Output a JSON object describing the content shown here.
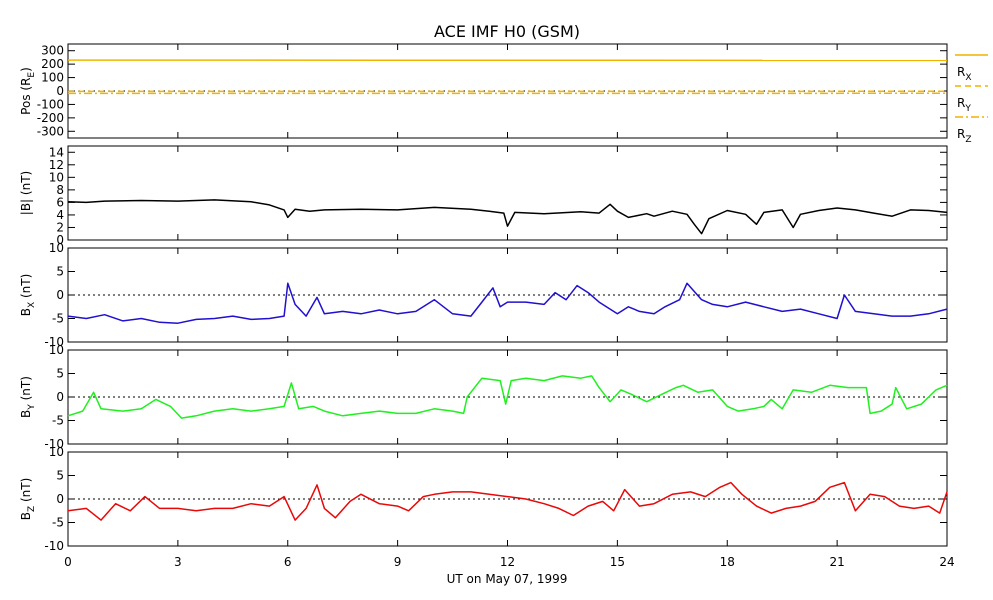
{
  "chart_data": {
    "title": "ACE IMF H0 (GSM)",
    "xlabel": "UT on May 07, 1999",
    "xticks": [
      0,
      3,
      6,
      9,
      12,
      15,
      18,
      21,
      24
    ],
    "xlim": [
      0,
      24
    ],
    "panels": [
      {
        "id": "pos",
        "type": "line",
        "ylabel": "Pos (R_E)",
        "ylim": [
          -350,
          350
        ],
        "yticks": [
          -300,
          -200,
          -100,
          0,
          100,
          200,
          300
        ],
        "zero_line": true,
        "series": [
          {
            "name": "RX",
            "color": "#f0b400",
            "dash": "solid",
            "x": [
              0,
              24
            ],
            "y": [
              230,
              228
            ]
          },
          {
            "name": "RY",
            "color": "#f0b400",
            "dash": "dashed",
            "x": [
              0,
              24
            ],
            "y": [
              -3,
              -2
            ]
          },
          {
            "name": "RZ",
            "color": "#f0b400",
            "dash": "dashdot",
            "x": [
              0,
              24
            ],
            "y": [
              -18,
              -17
            ]
          }
        ]
      },
      {
        "id": "btot",
        "type": "line",
        "ylabel": "|B| (nT)",
        "ylim": [
          0,
          15
        ],
        "yticks": [
          0,
          2,
          4,
          6,
          8,
          10,
          12,
          14
        ],
        "zero_line": false,
        "series": [
          {
            "name": "|B|",
            "color": "#000000",
            "x": [
              0,
              0.5,
              1,
              2,
              3,
              4,
              5,
              5.5,
              5.9,
              6.0,
              6.2,
              6.6,
              7,
              8,
              9,
              10,
              11,
              11.5,
              11.9,
              12,
              12.2,
              13,
              14,
              14.5,
              14.8,
              15,
              15.3,
              15.8,
              16,
              16.5,
              16.9,
              17.1,
              17.3,
              17.5,
              18,
              18.5,
              18.8,
              19,
              19.5,
              19.8,
              20,
              20.5,
              21,
              21.5,
              22,
              22.5,
              23,
              23.5,
              24
            ],
            "y": [
              6.1,
              6.0,
              6.2,
              6.3,
              6.2,
              6.4,
              6.1,
              5.6,
              4.8,
              3.6,
              4.9,
              4.6,
              4.8,
              4.9,
              4.8,
              5.2,
              4.9,
              4.6,
              4.3,
              2.2,
              4.4,
              4.2,
              4.5,
              4.3,
              5.7,
              4.6,
              3.6,
              4.2,
              3.8,
              4.6,
              4.1,
              2.5,
              1.0,
              3.4,
              4.7,
              4.1,
              2.5,
              4.4,
              4.8,
              2.0,
              4.1,
              4.7,
              5.1,
              4.8,
              4.3,
              3.8,
              4.8,
              4.7,
              4.4
            ]
          }
        ]
      },
      {
        "id": "bx",
        "type": "line",
        "ylabel": "BX (nT)",
        "ylim": [
          -10,
          10
        ],
        "yticks": [
          -10,
          -5,
          0,
          5,
          10
        ],
        "zero_line": true,
        "series": [
          {
            "name": "BX",
            "color": "#2010d0",
            "x": [
              0,
              0.5,
              1,
              1.5,
              2,
              2.5,
              3,
              3.5,
              4,
              4.5,
              5,
              5.5,
              5.9,
              6.0,
              6.2,
              6.5,
              6.8,
              7,
              7.5,
              8,
              8.5,
              9,
              9.5,
              10,
              10.5,
              11,
              11.3,
              11.6,
              11.8,
              12,
              12.5,
              13,
              13.3,
              13.6,
              13.9,
              14.2,
              14.5,
              14.8,
              15,
              15.3,
              15.6,
              16,
              16.3,
              16.7,
              16.9,
              17.3,
              17.6,
              18,
              18.5,
              19,
              19.5,
              20,
              20.5,
              21,
              21.2,
              21.5,
              22,
              22.5,
              23,
              23.5,
              24
            ],
            "y": [
              -4.5,
              -5.0,
              -4.2,
              -5.5,
              -5.0,
              -5.8,
              -6.0,
              -5.2,
              -5.0,
              -4.5,
              -5.2,
              -5.0,
              -4.5,
              2.5,
              -2.0,
              -4.5,
              -0.5,
              -4.0,
              -3.5,
              -4.0,
              -3.2,
              -4.0,
              -3.5,
              -1.0,
              -4.0,
              -4.5,
              -1.5,
              1.5,
              -2.5,
              -1.5,
              -1.5,
              -2.0,
              0.5,
              -1.0,
              2.0,
              0.5,
              -1.5,
              -3.0,
              -4.0,
              -2.5,
              -3.5,
              -4.0,
              -2.5,
              -1.0,
              2.5,
              -1.0,
              -2.0,
              -2.5,
              -1.5,
              -2.5,
              -3.5,
              -3.0,
              -4.0,
              -5.0,
              0.0,
              -3.5,
              -4.0,
              -4.5,
              -4.5,
              -4.0,
              -3.0
            ]
          }
        ]
      },
      {
        "id": "by",
        "type": "line",
        "ylabel": "BY (nT)",
        "ylim": [
          -10,
          10
        ],
        "yticks": [
          -10,
          -5,
          0,
          5,
          10
        ],
        "zero_line": true,
        "series": [
          {
            "name": "BY",
            "color": "#20f020",
            "x": [
              0,
              0.4,
              0.7,
              0.9,
              1.5,
              2,
              2.4,
              2.8,
              3.1,
              3.5,
              4,
              4.5,
              5,
              5.5,
              5.9,
              6.1,
              6.3,
              6.7,
              7,
              7.5,
              8,
              8.5,
              9,
              9.5,
              10,
              10.5,
              10.8,
              10.9,
              11.3,
              11.8,
              11.95,
              12.1,
              12.5,
              13,
              13.5,
              14,
              14.3,
              14.5,
              14.8,
              15.1,
              15.4,
              15.8,
              16.2,
              16.6,
              16.8,
              17.2,
              17.6,
              18,
              18.3,
              18.7,
              19,
              19.2,
              19.5,
              19.8,
              20.3,
              20.8,
              21.3,
              21.8,
              21.9,
              22.2,
              22.5,
              22.6,
              22.9,
              23.3,
              23.7,
              24
            ],
            "y": [
              -4.0,
              -3.0,
              1.0,
              -2.5,
              -3.0,
              -2.5,
              -0.5,
              -2.0,
              -4.5,
              -4.0,
              -3.0,
              -2.5,
              -3.0,
              -2.5,
              -2.0,
              3.0,
              -2.5,
              -2.0,
              -3.0,
              -4.0,
              -3.5,
              -3.0,
              -3.5,
              -3.5,
              -2.5,
              -3.0,
              -3.5,
              0.0,
              4.0,
              3.5,
              -1.5,
              3.5,
              4.0,
              3.5,
              4.5,
              4.0,
              4.5,
              2.0,
              -1.0,
              1.5,
              0.5,
              -1.0,
              0.5,
              2.0,
              2.5,
              1.0,
              1.5,
              -2.0,
              -3.0,
              -2.5,
              -2.0,
              -0.5,
              -2.5,
              1.5,
              1.0,
              2.5,
              2.0,
              2.0,
              -3.5,
              -3.0,
              -1.5,
              2.0,
              -2.5,
              -1.5,
              1.5,
              2.5
            ]
          }
        ]
      },
      {
        "id": "bz",
        "type": "line",
        "ylabel": "BZ (nT)",
        "ylim": [
          -10,
          10
        ],
        "yticks": [
          -10,
          -5,
          0,
          5,
          10
        ],
        "zero_line": true,
        "series": [
          {
            "name": "BZ",
            "color": "#e80808",
            "x": [
              0,
              0.5,
              0.9,
              1.3,
              1.7,
              2.1,
              2.5,
              3,
              3.5,
              4,
              4.5,
              5,
              5.5,
              5.9,
              6.2,
              6.5,
              6.8,
              7,
              7.3,
              7.7,
              8,
              8.5,
              9,
              9.3,
              9.7,
              10,
              10.5,
              11,
              11.5,
              12,
              12.5,
              13,
              13.4,
              13.8,
              14.2,
              14.6,
              14.9,
              15.2,
              15.6,
              16,
              16.5,
              17,
              17.4,
              17.8,
              18.1,
              18.4,
              18.8,
              19.2,
              19.6,
              20,
              20.4,
              20.8,
              21.2,
              21.5,
              21.9,
              22.3,
              22.7,
              23.1,
              23.5,
              23.8,
              24
            ],
            "y": [
              -2.5,
              -2.0,
              -4.5,
              -1.0,
              -2.5,
              0.5,
              -2.0,
              -2.0,
              -2.5,
              -2.0,
              -2.0,
              -1.0,
              -1.5,
              0.5,
              -4.5,
              -2.0,
              3.0,
              -2.0,
              -4.0,
              -0.5,
              1.0,
              -1.0,
              -1.5,
              -2.5,
              0.5,
              1.0,
              1.5,
              1.5,
              1.0,
              0.5,
              0.0,
              -1.0,
              -2.0,
              -3.5,
              -1.5,
              -0.5,
              -2.5,
              2.0,
              -1.5,
              -1.0,
              1.0,
              1.5,
              0.5,
              2.5,
              3.5,
              1.0,
              -1.5,
              -3.0,
              -2.0,
              -1.5,
              -0.5,
              2.5,
              3.5,
              -2.5,
              1.0,
              0.5,
              -1.5,
              -2.0,
              -1.5,
              -3.0,
              1.5
            ]
          }
        ]
      }
    ],
    "pos_legend": [
      {
        "main": "R",
        "sub": "X",
        "dash": "solid"
      },
      {
        "main": "R",
        "sub": "Y",
        "dash": "dashed"
      },
      {
        "main": "R",
        "sub": "Z",
        "dash": "dashdot"
      }
    ]
  }
}
